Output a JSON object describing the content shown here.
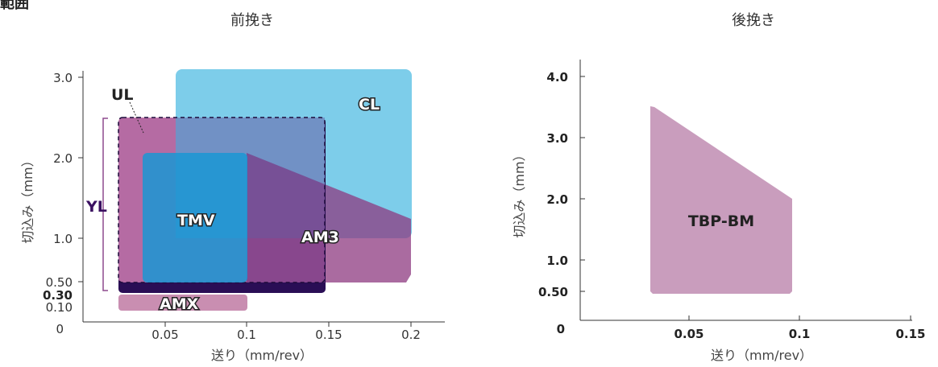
{
  "heading": "難範囲",
  "chart_data": [
    {
      "type": "area",
      "title": "前挽き",
      "xlabel": "送り（mm/rev）",
      "ylabel": "切込み（mm）",
      "xlim": [
        0,
        0.22
      ],
      "ylim": [
        0,
        3.0
      ],
      "x_ticks": [
        "0.05",
        "0.1",
        "0.15",
        "0.2"
      ],
      "y_ticks": [
        "0",
        "0.10",
        "0.30",
        "0.50",
        "1.0",
        "2.0",
        "3.0"
      ],
      "grid": false,
      "regions": [
        {
          "name": "CL",
          "x": [
            0.058,
            0.2
          ],
          "y": [
            1.0,
            3.0
          ],
          "color": "#7dcdea"
        },
        {
          "name": "AM3",
          "polygon": [
            [
              0.1,
              0.5
            ],
            [
              0.1,
              2.05
            ],
            [
              0.2,
              1.25
            ],
            [
              0.2,
              0.5
            ]
          ],
          "color": "#8e3a80"
        },
        {
          "name": "UL",
          "x": [
            0.022,
            0.147
          ],
          "y": [
            0.3,
            2.5
          ],
          "color": "#c173aa"
        },
        {
          "name": "TMV",
          "x": [
            0.037,
            0.1
          ],
          "y": [
            0.5,
            2.05
          ],
          "color": "#1a96d4"
        },
        {
          "name": "AMX",
          "x": [
            0.022,
            0.1
          ],
          "y": [
            0.1,
            0.3
          ],
          "color": "#c98eb1"
        },
        {
          "name": "YL",
          "y": [
            0.5,
            2.5
          ],
          "color": "#3a1060"
        }
      ]
    },
    {
      "type": "area",
      "title": "後挽き",
      "xlabel": "送り（mm/rev）",
      "ylabel": "切込み（mm）",
      "xlim": [
        0,
        0.15
      ],
      "ylim": [
        0,
        4.3
      ],
      "x_ticks": [
        "0.05",
        "0.1",
        "0.15"
      ],
      "y_ticks": [
        "0",
        "0.50",
        "1.0",
        "2.0",
        "3.0",
        "4.0"
      ],
      "grid": false,
      "regions": [
        {
          "name": "TBP-BM",
          "polygon": [
            [
              0.032,
              0.5
            ],
            [
              0.032,
              3.5
            ],
            [
              0.095,
              2.0
            ],
            [
              0.095,
              0.5
            ]
          ],
          "color": "#c99dbd"
        }
      ]
    }
  ]
}
